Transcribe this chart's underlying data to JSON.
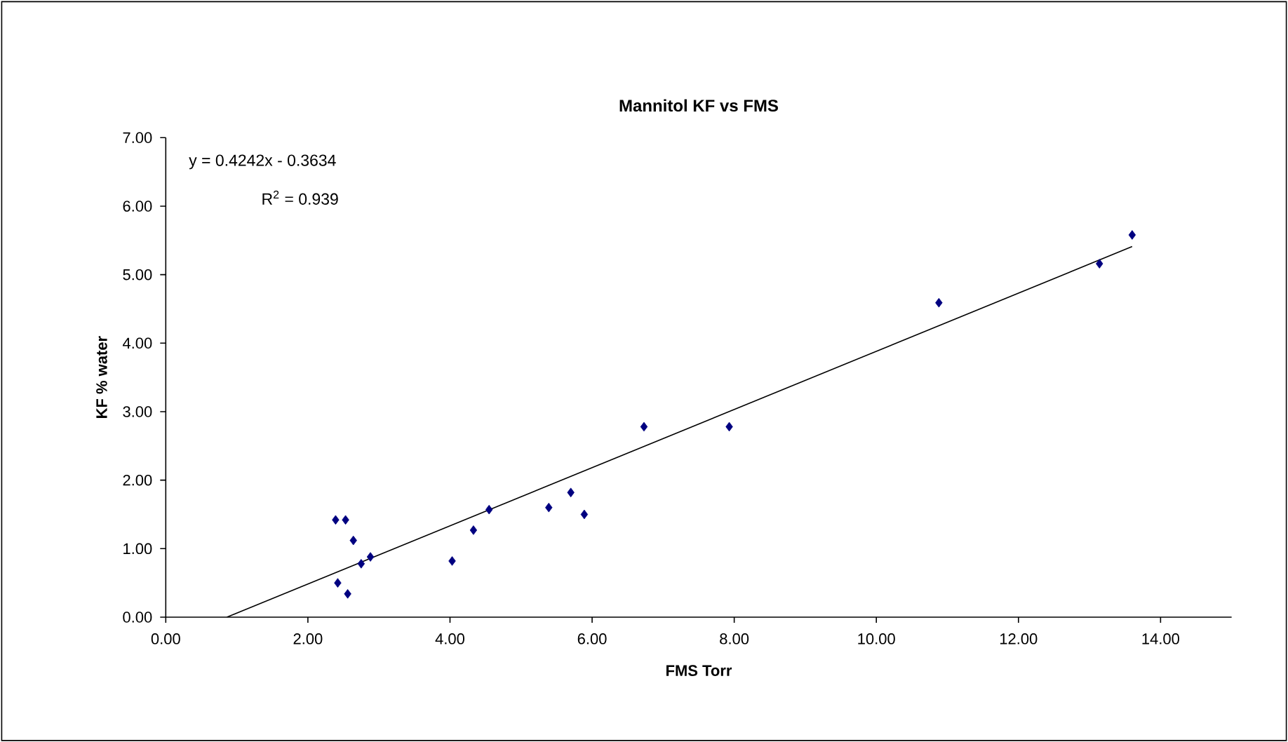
{
  "chart_data": {
    "type": "scatter",
    "title": "Mannitol KF vs FMS",
    "xlabel": "FMS Torr",
    "ylabel": "KF % water",
    "series": [
      {
        "color": "#000080",
        "marker": "diamond",
        "x": [
          2.39,
          2.53,
          2.64,
          2.75,
          2.88,
          2.42,
          2.56,
          4.03,
          4.33,
          4.55,
          5.39,
          5.7,
          5.89,
          6.73,
          7.93,
          10.88,
          13.14,
          13.6
        ],
        "values": [
          1.42,
          1.42,
          1.12,
          0.78,
          0.88,
          0.5,
          0.34,
          0.82,
          1.27,
          1.57,
          1.6,
          1.82,
          1.5,
          2.78,
          2.78,
          4.59,
          5.16,
          5.58
        ]
      },
      {
        "type": "line",
        "color": "#000000",
        "marker": "none",
        "x": [
          0.86,
          13.6
        ],
        "values": [
          0,
          5.41
        ]
      }
    ],
    "annotations": [
      "y = 0.4242x - 0.3634",
      "R$^{2}$ = 0.939"
    ],
    "xlim": [
      0,
      15
    ],
    "ylim": [
      0,
      7
    ],
    "xticks": [
      {
        "value": 0,
        "label": "0.00"
      },
      {
        "value": 2,
        "label": "2.00"
      },
      {
        "value": 4,
        "label": "4.00"
      },
      {
        "value": 6,
        "label": "6.00"
      },
      {
        "value": 8,
        "label": "8.00"
      },
      {
        "value": 10,
        "label": "10.00"
      },
      {
        "value": 12,
        "label": "12.00"
      },
      {
        "value": 14,
        "label": "14.00"
      }
    ],
    "yticks": [
      {
        "value": 0,
        "label": "0.00"
      },
      {
        "value": 1,
        "label": "1.00"
      },
      {
        "value": 2,
        "label": "2.00"
      },
      {
        "value": 3,
        "label": "3.00"
      },
      {
        "value": 4,
        "label": "4.00"
      },
      {
        "value": 5,
        "label": "5.00"
      },
      {
        "value": 6,
        "label": "6.00"
      },
      {
        "value": 7,
        "label": "7.00"
      }
    ],
    "grid": false
  }
}
